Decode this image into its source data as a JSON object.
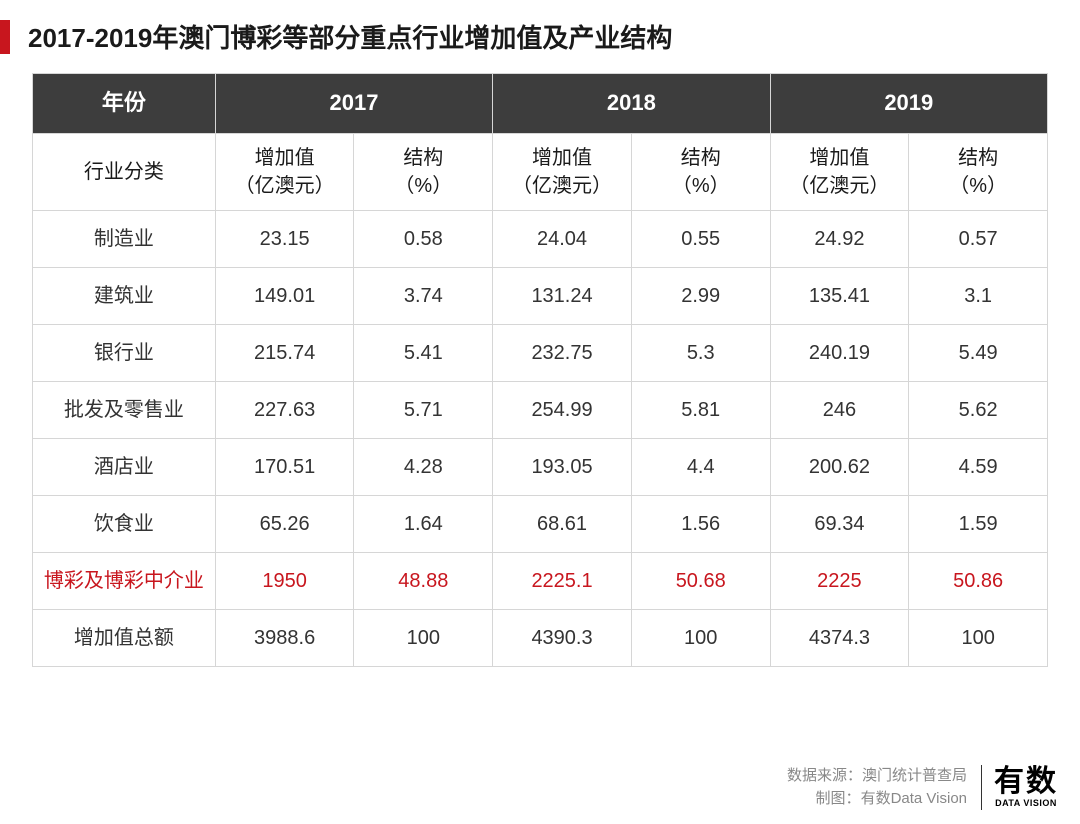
{
  "title": "2017-2019年澳门博彩等部分重点行业增加值及产业结构",
  "table": {
    "header_year_label": "年份",
    "years": [
      "2017",
      "2018",
      "2019"
    ],
    "header_category_label": "行业分类",
    "sub_headers": {
      "value_label": "增加值\n（亿澳元）",
      "ratio_label": "结构\n（%）"
    },
    "rows": [
      {
        "label": "制造业",
        "y2017_v": "23.15",
        "y2017_r": "0.58",
        "y2018_v": "24.04",
        "y2018_r": "0.55",
        "y2019_v": "24.92",
        "y2019_r": "0.57",
        "highlight": false
      },
      {
        "label": "建筑业",
        "y2017_v": "149.01",
        "y2017_r": "3.74",
        "y2018_v": "131.24",
        "y2018_r": "2.99",
        "y2019_v": "135.41",
        "y2019_r": "3.1",
        "highlight": false
      },
      {
        "label": "银行业",
        "y2017_v": "215.74",
        "y2017_r": "5.41",
        "y2018_v": "232.75",
        "y2018_r": "5.3",
        "y2019_v": "240.19",
        "y2019_r": "5.49",
        "highlight": false
      },
      {
        "label": "批发及零售业",
        "y2017_v": "227.63",
        "y2017_r": "5.71",
        "y2018_v": "254.99",
        "y2018_r": "5.81",
        "y2019_v": "246",
        "y2019_r": "5.62",
        "highlight": false
      },
      {
        "label": "酒店业",
        "y2017_v": "170.51",
        "y2017_r": "4.28",
        "y2018_v": "193.05",
        "y2018_r": "4.4",
        "y2019_v": "200.62",
        "y2019_r": "4.59",
        "highlight": false
      },
      {
        "label": "饮食业",
        "y2017_v": "65.26",
        "y2017_r": "1.64",
        "y2018_v": "68.61",
        "y2018_r": "1.56",
        "y2019_v": "69.34",
        "y2019_r": "1.59",
        "highlight": false
      },
      {
        "label": "博彩及博彩中介业",
        "y2017_v": "1950",
        "y2017_r": "48.88",
        "y2018_v": "2225.1",
        "y2018_r": "50.68",
        "y2019_v": "2225",
        "y2019_r": "50.86",
        "highlight": true
      },
      {
        "label": "增加值总额",
        "y2017_v": "3988.6",
        "y2017_r": "100",
        "y2018_v": "4390.3",
        "y2018_r": "100",
        "y2019_v": "4374.3",
        "y2019_r": "100",
        "highlight": false
      }
    ],
    "colors": {
      "header_bg": "#3d3d3d",
      "header_fg": "#ffffff",
      "border": "#d6d6d6",
      "text": "#333333",
      "highlight": "#c8161e"
    }
  },
  "footer": {
    "source_label": "数据来源：",
    "source_value": "澳门统计普查局",
    "credit_label": "制图：",
    "credit_value": "有数Data Vision",
    "logo_main": "有数",
    "logo_sub": "DATA VISION"
  }
}
